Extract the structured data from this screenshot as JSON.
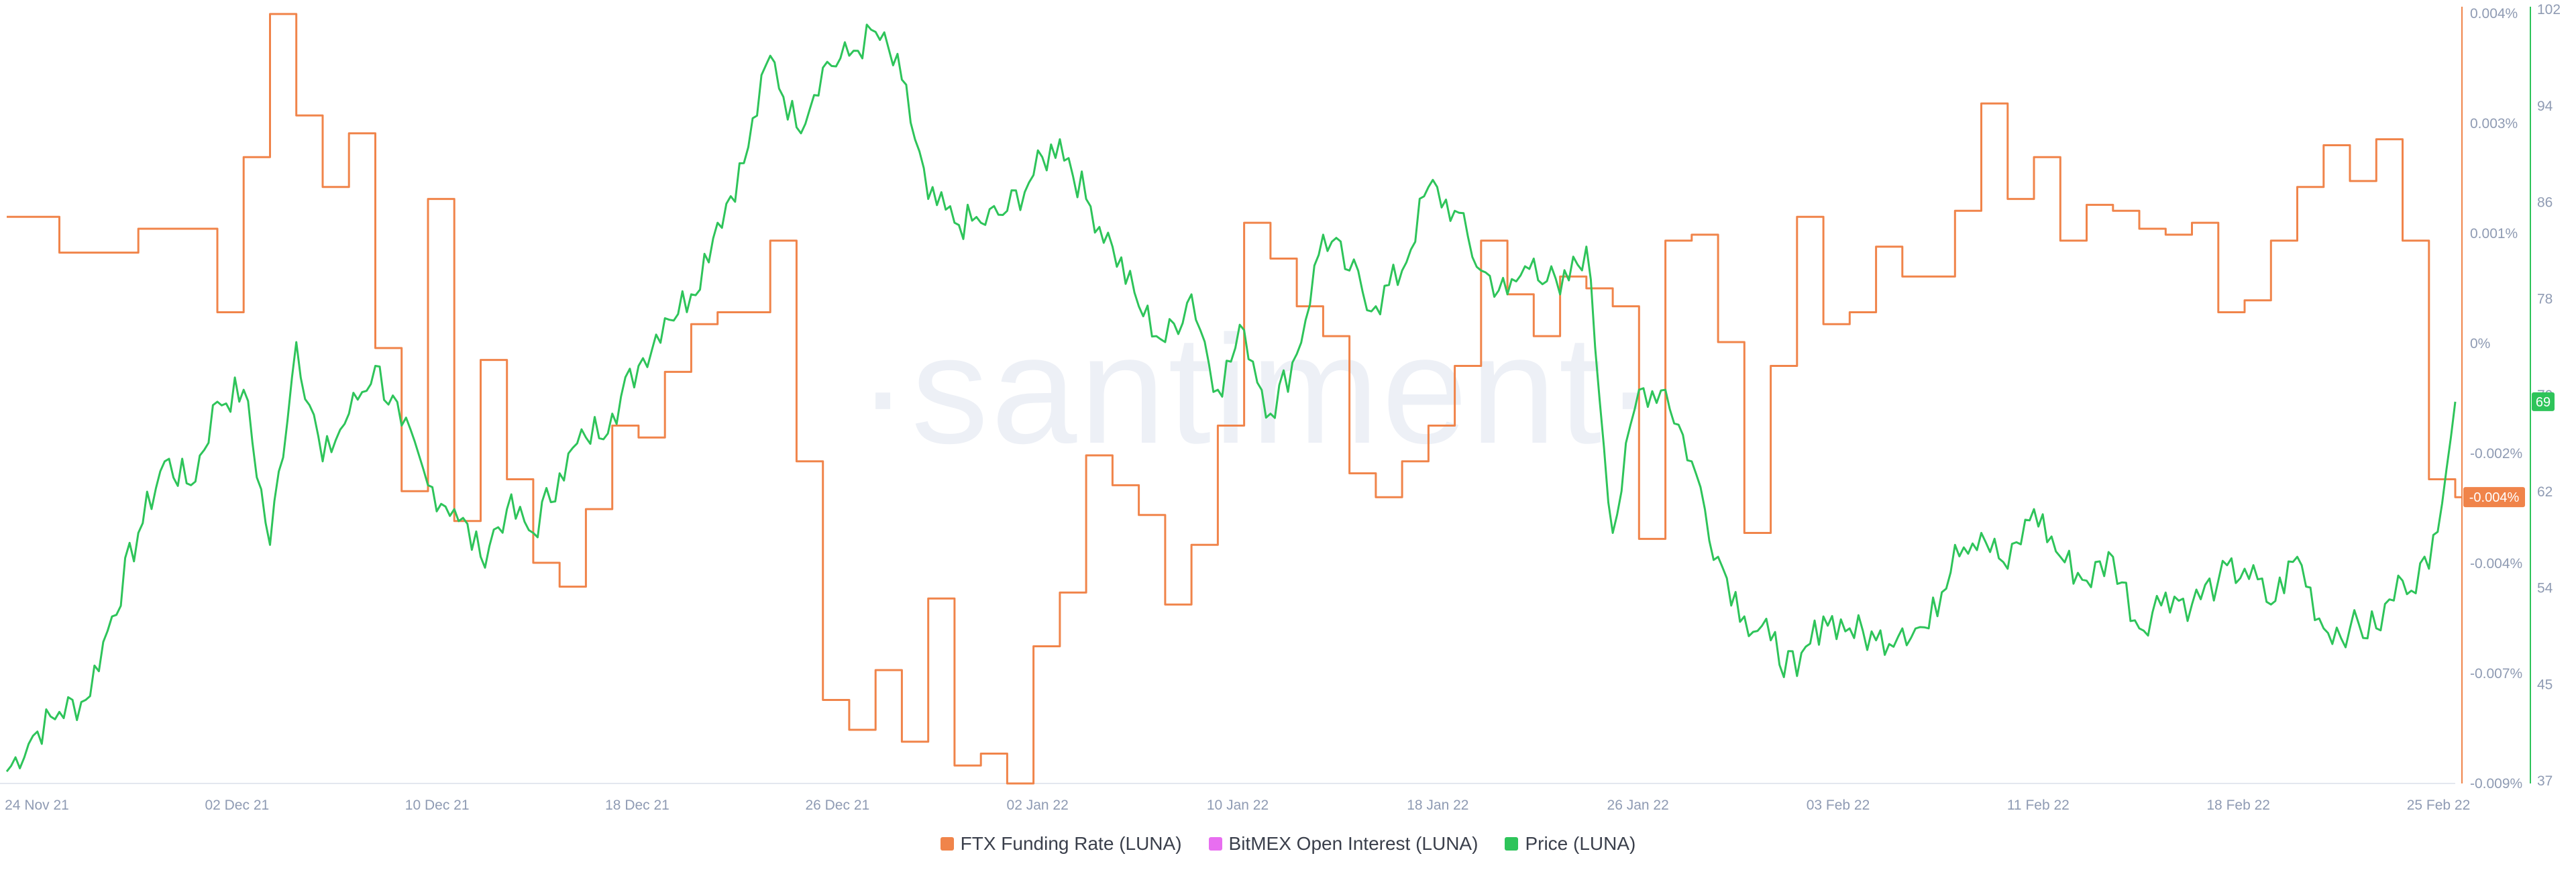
{
  "watermark": "·santiment·",
  "chart_data": {
    "type": "line",
    "x_ticks": [
      "24 Nov 21",
      "02 Dec 21",
      "10 Dec 21",
      "18 Dec 21",
      "26 Dec 21",
      "02 Jan 22",
      "10 Jan 22",
      "18 Jan 22",
      "26 Jan 22",
      "03 Feb 22",
      "11 Feb 22",
      "18 Feb 22",
      "25 Feb 22"
    ],
    "x_range": [
      "2021-11-24",
      "2022-02-25"
    ],
    "funding_axis": {
      "ticks": [
        "0.004%",
        "0.003%",
        "0.001%",
        "0%",
        "-0.002%",
        "-0.004%",
        "-0.007%",
        "-0.009%"
      ],
      "range": [
        -0.009,
        0.004
      ],
      "current_label": "-0.004%"
    },
    "price_axis": {
      "ticks": [
        "102",
        "94",
        "86",
        "78",
        "70",
        "62",
        "54",
        "45",
        "37"
      ],
      "range": [
        37,
        102
      ],
      "current_label": "69"
    },
    "legend": [
      {
        "label": "FTX Funding Rate (LUNA)",
        "color": "#f0844a"
      },
      {
        "label": "BitMEX Open Interest (LUNA)",
        "color": "#e86ef0"
      },
      {
        "label": "Price (LUNA)",
        "color": "#2ec45a"
      }
    ],
    "series": [
      {
        "name": "FTX Funding Rate (LUNA)",
        "color": "#f0844a",
        "axis": "funding",
        "x": [
          "2021-11-24",
          "2021-11-25",
          "2021-11-26",
          "2021-11-27",
          "2021-11-28",
          "2021-11-29",
          "2021-11-30",
          "2021-12-01",
          "2021-12-02",
          "2021-12-03",
          "2021-12-04",
          "2021-12-05",
          "2021-12-06",
          "2021-12-07",
          "2021-12-08",
          "2021-12-09",
          "2021-12-10",
          "2021-12-11",
          "2021-12-12",
          "2021-12-13",
          "2021-12-14",
          "2021-12-15",
          "2021-12-16",
          "2021-12-17",
          "2021-12-18",
          "2021-12-19",
          "2021-12-20",
          "2021-12-21",
          "2021-12-22",
          "2021-12-23",
          "2021-12-24",
          "2021-12-25",
          "2021-12-26",
          "2021-12-27",
          "2021-12-28",
          "2021-12-29",
          "2021-12-30",
          "2021-12-31",
          "2022-01-01",
          "2022-01-02",
          "2022-01-03",
          "2022-01-04",
          "2022-01-05",
          "2022-01-06",
          "2022-01-07",
          "2022-01-08",
          "2022-01-09",
          "2022-01-10",
          "2022-01-11",
          "2022-01-12",
          "2022-01-13",
          "2022-01-14",
          "2022-01-15",
          "2022-01-16",
          "2022-01-17",
          "2022-01-18",
          "2022-01-19",
          "2022-01-20",
          "2022-01-21",
          "2022-01-22",
          "2022-01-23",
          "2022-01-24",
          "2022-01-25",
          "2022-01-26",
          "2022-01-27",
          "2022-01-28",
          "2022-01-29",
          "2022-01-30",
          "2022-01-31",
          "2022-02-01",
          "2022-02-02",
          "2022-02-03",
          "2022-02-04",
          "2022-02-05",
          "2022-02-06",
          "2022-02-07",
          "2022-02-08",
          "2022-02-09",
          "2022-02-10",
          "2022-02-11",
          "2022-02-12",
          "2022-02-13",
          "2022-02-14",
          "2022-02-15",
          "2022-02-16",
          "2022-02-17",
          "2022-02-18",
          "2022-02-19",
          "2022-02-20",
          "2022-02-21",
          "2022-02-22",
          "2022-02-23",
          "2022-02-24",
          "2022-02-25"
        ],
        "values": [
          0.0005,
          0.0005,
          -0.0001,
          -0.0001,
          -0.0001,
          0.0003,
          0.0003,
          0.0003,
          -0.0011,
          0.0015,
          0.0039,
          0.0022,
          0.001,
          0.0019,
          -0.0017,
          -0.0041,
          0.0008,
          -0.0046,
          -0.0019,
          -0.0039,
          -0.0053,
          -0.0057,
          -0.0044,
          -0.003,
          -0.0032,
          -0.0021,
          -0.0013,
          -0.0011,
          -0.0011,
          0.0001,
          -0.0036,
          -0.0076,
          -0.0081,
          -0.0071,
          -0.0083,
          -0.0059,
          -0.0087,
          -0.0085,
          -0.009,
          -0.0067,
          -0.0058,
          -0.0035,
          -0.004,
          -0.0045,
          -0.006,
          -0.005,
          -0.003,
          0.0004,
          -0.0002,
          -0.001,
          -0.0015,
          -0.0038,
          -0.0042,
          -0.0036,
          -0.003,
          -0.002,
          0.0001,
          -0.0008,
          -0.0015,
          -0.0005,
          -0.0007,
          -0.001,
          -0.0049,
          0.0001,
          0.0002,
          -0.0016,
          -0.0048,
          -0.002,
          0.0005,
          -0.0013,
          -0.0011,
          0.0,
          -0.0005,
          -0.0005,
          0.0006,
          0.0024,
          0.0008,
          0.0015,
          0.0001,
          0.0007,
          0.0006,
          0.0003,
          0.0002,
          0.0004,
          -0.0011,
          -0.0009,
          0.0001,
          0.001,
          0.0017,
          0.0011,
          0.0018,
          0.0001,
          -0.0039,
          -0.0042
        ],
        "smoothing": "step"
      },
      {
        "name": "Price (LUNA)",
        "color": "#2ec45a",
        "axis": "price",
        "x": [
          "2021-11-24",
          "2021-11-25",
          "2021-11-26",
          "2021-11-27",
          "2021-11-28",
          "2021-11-29",
          "2021-11-30",
          "2021-12-01",
          "2021-12-02",
          "2021-12-03",
          "2021-12-04",
          "2021-12-05",
          "2021-12-06",
          "2021-12-07",
          "2021-12-08",
          "2021-12-09",
          "2021-12-10",
          "2021-12-11",
          "2021-12-12",
          "2021-12-13",
          "2021-12-14",
          "2021-12-15",
          "2021-12-16",
          "2021-12-17",
          "2021-12-18",
          "2021-12-19",
          "2021-12-20",
          "2021-12-21",
          "2021-12-22",
          "2021-12-23",
          "2021-12-24",
          "2021-12-25",
          "2021-12-26",
          "2021-12-27",
          "2021-12-28",
          "2021-12-29",
          "2021-12-30",
          "2021-12-31",
          "2022-01-01",
          "2022-01-02",
          "2022-01-03",
          "2022-01-04",
          "2022-01-05",
          "2022-01-06",
          "2022-01-07",
          "2022-01-08",
          "2022-01-09",
          "2022-01-10",
          "2022-01-11",
          "2022-01-12",
          "2022-01-13",
          "2022-01-14",
          "2022-01-15",
          "2022-01-16",
          "2022-01-17",
          "2022-01-18",
          "2022-01-19",
          "2022-01-20",
          "2022-01-21",
          "2022-01-22",
          "2022-01-23",
          "2022-01-24",
          "2022-01-25",
          "2022-01-26",
          "2022-01-27",
          "2022-01-28",
          "2022-01-29",
          "2022-01-30",
          "2022-01-31",
          "2022-02-01",
          "2022-02-02",
          "2022-02-03",
          "2022-02-04",
          "2022-02-05",
          "2022-02-06",
          "2022-02-07",
          "2022-02-08",
          "2022-02-09",
          "2022-02-10",
          "2022-02-11",
          "2022-02-12",
          "2022-02-13",
          "2022-02-14",
          "2022-02-15",
          "2022-02-16",
          "2022-02-17",
          "2022-02-18",
          "2022-02-19",
          "2022-02-20",
          "2022-02-21",
          "2022-02-22",
          "2022-02-23",
          "2022-02-24",
          "2022-02-25"
        ],
        "values": [
          38,
          41,
          43,
          44,
          51,
          58,
          64,
          62,
          69,
          70,
          57,
          74,
          64,
          68,
          72,
          67,
          62,
          60,
          56,
          60,
          58,
          63,
          66,
          68,
          72,
          76,
          78,
          84,
          89,
          98,
          92,
          97,
          98,
          100,
          96,
          86,
          84,
          84,
          85,
          88,
          91,
          86,
          82,
          77,
          74,
          78,
          70,
          75,
          68,
          73,
          83,
          80,
          77,
          80,
          87,
          85,
          80,
          78,
          81,
          78,
          82,
          58,
          70,
          70,
          64,
          56,
          51,
          49,
          46,
          51,
          50,
          49,
          50,
          50,
          57,
          58,
          55,
          60,
          56,
          54,
          56,
          50,
          53,
          52,
          54,
          55,
          52,
          56,
          50,
          50,
          50,
          54,
          55,
          69
        ],
        "smoothing": "noisy"
      },
      {
        "name": "BitMEX Open Interest (LUNA)",
        "color": "#e86ef0",
        "axis": "none",
        "values": []
      }
    ]
  }
}
